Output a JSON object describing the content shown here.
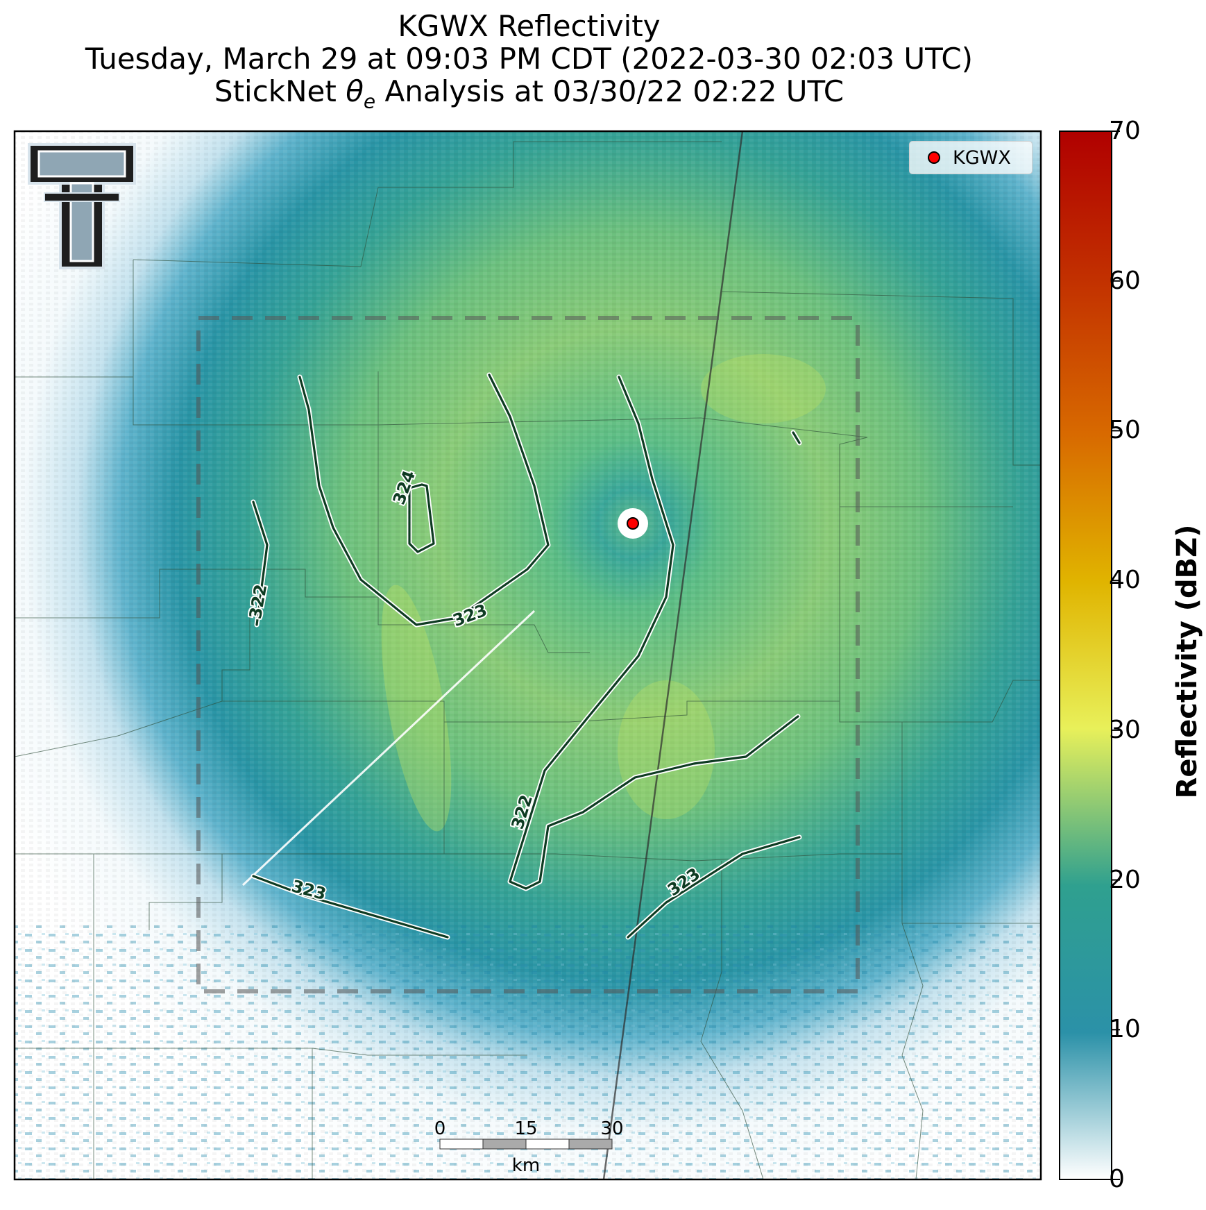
{
  "title": {
    "line1": "KGWX Reflectivity",
    "line2": "Tuesday, March 29 at 09:03 PM CDT (2022-03-30 02:03 UTC)",
    "line3_prefix": "StickNet ",
    "line3_symbol": "θ",
    "line3_subscript": "e",
    "line3_suffix": " Analysis at 03/30/22 02:22 UTC"
  },
  "legend": {
    "label": "KGWX",
    "marker_color": "#ff0000"
  },
  "colorbar": {
    "label": "Reflectivity (dBZ)",
    "range": [
      0,
      70
    ],
    "ticks": [
      "0",
      "10",
      "20",
      "30",
      "40",
      "50",
      "60",
      "70"
    ],
    "colors": [
      "#ffffff",
      "#2b91a8",
      "#2fa08f",
      "#8fd07a",
      "#e8f05a",
      "#e0b400",
      "#d86a00",
      "#b00000"
    ]
  },
  "contours": {
    "color": "#0e3b22",
    "labels": [
      "324",
      "323",
      "322",
      "322",
      "323",
      "323"
    ]
  },
  "scalebar": {
    "ticks": [
      "0",
      "15",
      "30"
    ],
    "unit": "km"
  },
  "map": {
    "radar_site": "KGWX",
    "analysis_domain": "dashed box"
  }
}
